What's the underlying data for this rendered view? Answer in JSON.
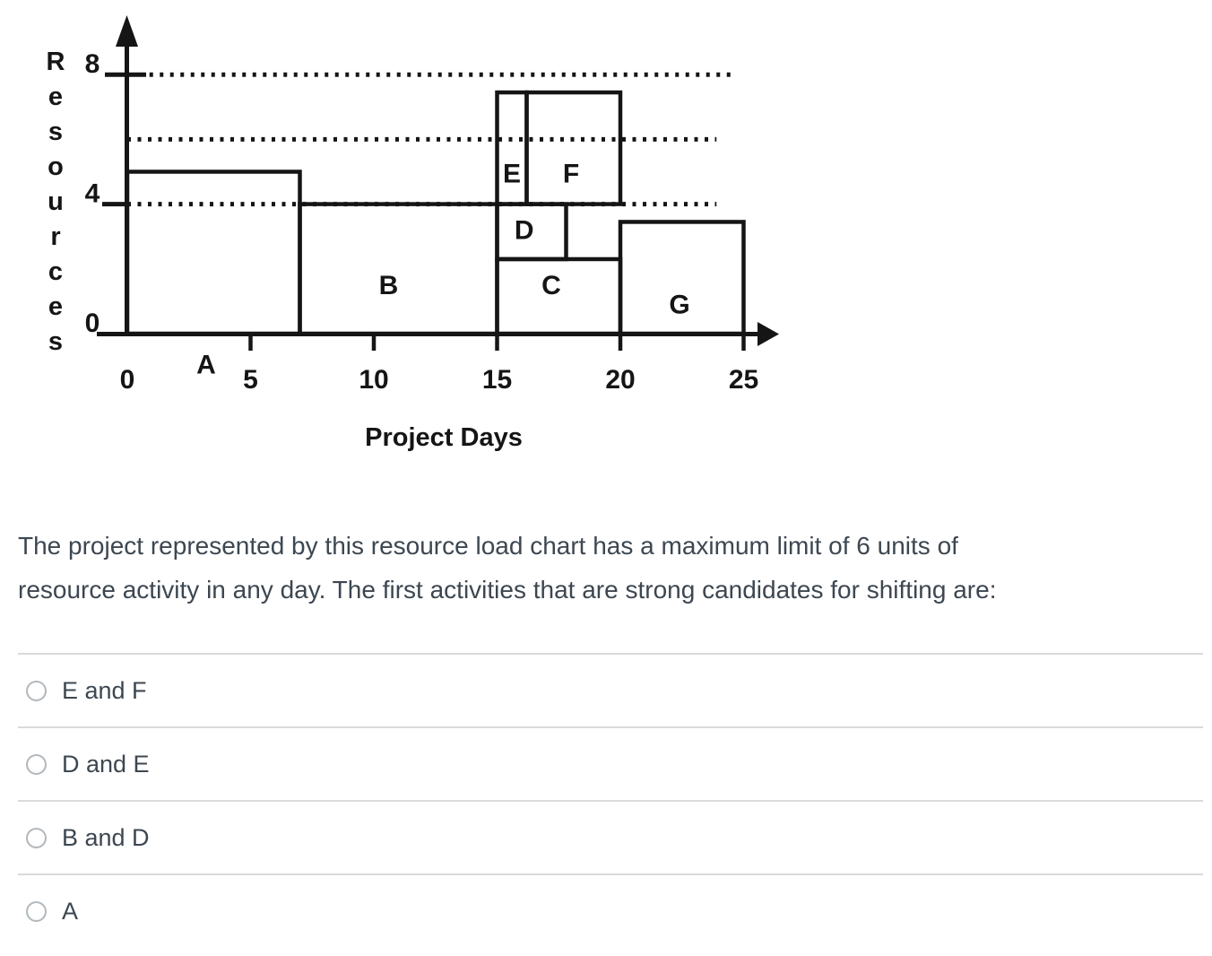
{
  "colors": {
    "chart_ink": "#151515",
    "text": "#3d4751",
    "divider": "#d8dadb",
    "radio_border": "#b2b8bd"
  },
  "chart_data": {
    "type": "resource_load_step_chart",
    "x_axis_label": "Project Days",
    "y_axis_label": "Resources",
    "x_ticks": [
      0,
      5,
      10,
      15,
      20,
      25
    ],
    "y_ticks": [
      8,
      4,
      0
    ],
    "xlim": [
      0,
      25
    ],
    "ylim": [
      0,
      8
    ],
    "grid": false,
    "resource_limit_lines": [
      {
        "resources": 8,
        "day_start": 0.9,
        "day_end": 24.65
      },
      {
        "resources": 6,
        "day_start": 0,
        "day_end": 23.9
      },
      {
        "resources": 4,
        "day_start": 0,
        "day_end": 23.9
      }
    ],
    "activities": [
      {
        "name": "A",
        "day_start": 0,
        "day_end": 7,
        "resource_from": 0,
        "resource_to": 5,
        "label_day": 3.2,
        "label_resource": -0.95
      },
      {
        "name": "B",
        "day_start": 7,
        "day_end": 15,
        "resource_from": 0,
        "resource_to": 4,
        "label_day": 10.6,
        "label_resource": 1.5
      },
      {
        "name": "C",
        "day_start": 15,
        "day_end": 20,
        "resource_from": 0,
        "resource_to": 2.3,
        "label_day": 17.2,
        "label_resource": 1.5
      },
      {
        "name": "D",
        "day_start": 15,
        "day_end": 17.8,
        "resource_from": 2.3,
        "resource_to": 4,
        "label_day": 16.1,
        "label_resource": 3.2
      },
      {
        "name": "E",
        "day_start": 15,
        "day_end": 16.2,
        "resource_from": 4,
        "resource_to": 7.45,
        "label_day": 15.6,
        "label_resource": 4.95
      },
      {
        "name": "F",
        "day_start": 16.2,
        "day_end": 20,
        "resource_from": 4,
        "resource_to": 7.45,
        "label_day": 18.0,
        "label_resource": 4.95
      },
      {
        "name": "G",
        "day_start": 20,
        "day_end": 25,
        "resource_from": 0,
        "resource_to": 3.45,
        "label_day": 22.4,
        "label_resource": 0.9
      }
    ]
  },
  "question": {
    "line1": "The project represented by this resource load chart has a maximum limit of 6 units of",
    "line2": "resource activity in any day. The first activities that are strong candidates for shifting are:"
  },
  "options": [
    {
      "label": "E and F",
      "selected": false
    },
    {
      "label": "D and E",
      "selected": false
    },
    {
      "label": "B and D",
      "selected": false
    },
    {
      "label": "A",
      "selected": false
    }
  ]
}
